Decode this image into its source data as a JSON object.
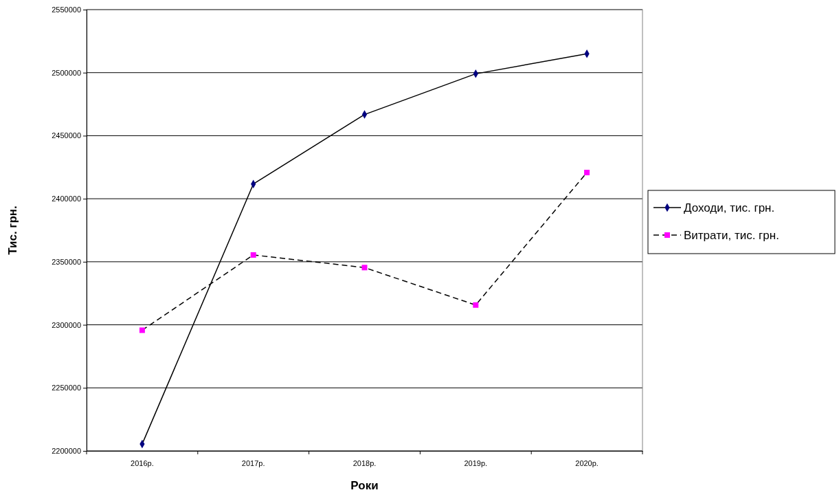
{
  "chart_data": {
    "type": "line",
    "xlabel": "Роки",
    "ylabel": "Тис. грн.",
    "categories": [
      "2016р.",
      "2017р.",
      "2018р.",
      "2019р.",
      "2020р."
    ],
    "series": [
      {
        "name": "Доходи, тис. грн.",
        "color": "#000080",
        "values": [
          2205400,
          2411700,
          2466800,
          2499100,
          2515000
        ],
        "marker": "diamond",
        "line_style": "solid"
      },
      {
        "name": "Витрати, тис. грн.",
        "color": "#ff00ff",
        "values": [
          2295700,
          2355400,
          2345400,
          2315700,
          2420800
        ],
        "marker": "square",
        "line_style": "dashed"
      }
    ],
    "ylim": [
      2200000,
      2550000
    ],
    "yticks": [
      2200000,
      2250000,
      2300000,
      2350000,
      2400000,
      2450000,
      2500000,
      2550000
    ],
    "grid": "y",
    "legend": "right"
  }
}
